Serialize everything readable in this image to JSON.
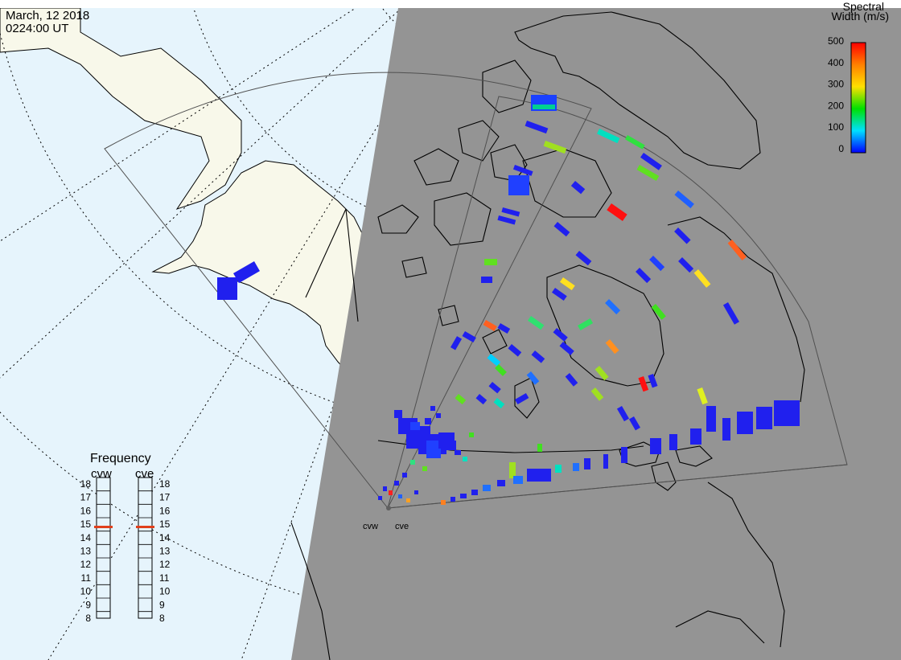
{
  "header": {
    "date": "March, 12 2018",
    "time": "0224:00 UT"
  },
  "colorbar": {
    "title_line1": "Spectral",
    "title_line2": "Width (m/s)",
    "ticks": [
      "500",
      "400",
      "300",
      "200",
      "100",
      "0"
    ],
    "range": [
      0,
      500
    ]
  },
  "frequency": {
    "title": "Frequency",
    "radars": [
      {
        "id": "cvw",
        "label": "cvw",
        "value_mhz": 14.8
      },
      {
        "id": "cve",
        "label": "cve",
        "value_mhz": 14.8
      }
    ],
    "ticks": [
      "18",
      "17",
      "16",
      "15",
      "14",
      "13",
      "12",
      "11",
      "10",
      "9",
      "8"
    ],
    "range_mhz": [
      8,
      18
    ]
  },
  "sites": [
    {
      "id": "cvw",
      "label": "cvw"
    },
    {
      "id": "cve",
      "label": "cve"
    }
  ],
  "colors": {
    "ocean": "#e6f4fc",
    "land": "#f8f8ea",
    "night_side": "#949494",
    "coast": "#000000",
    "frequency_marker": "#e0401c",
    "site_marker": "#606060"
  }
}
